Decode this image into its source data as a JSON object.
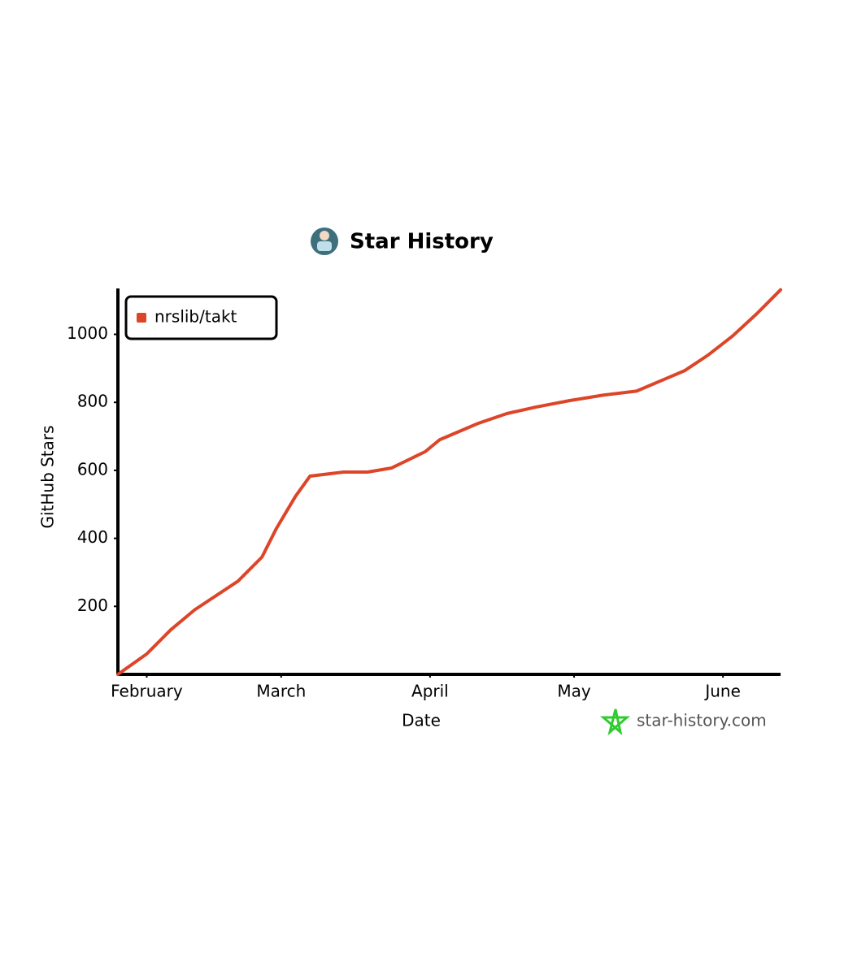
{
  "chart_data": {
    "type": "line",
    "title": "Star History",
    "x_label": "Date",
    "y_label": "GitHub Stars",
    "watermark": "star-history.com",
    "x": [
      -6,
      0,
      5,
      10,
      19,
      24,
      27,
      31,
      34,
      41,
      46,
      51,
      58,
      61,
      69,
      75,
      81,
      88,
      95,
      102,
      108,
      112,
      117,
      122,
      127,
      132
    ],
    "series": [
      {
        "name": "nrslib/takt",
        "color": "#dd4528",
        "values": [
          0,
          60,
          131,
          190,
          274,
          345,
          429,
          524,
          583,
          595,
          595,
          607,
          655,
          690,
          738,
          767,
          786,
          805,
          821,
          833,
          869,
          893,
          940,
          995,
          1060,
          1131
        ]
      }
    ],
    "xlim": [
      -6,
      132
    ],
    "xticks": [
      {
        "value": 0,
        "label": "February"
      },
      {
        "value": 28,
        "label": "March"
      },
      {
        "value": 59,
        "label": "April"
      },
      {
        "value": 89,
        "label": "May"
      },
      {
        "value": 120,
        "label": "June"
      }
    ],
    "ylim": [
      0,
      1135
    ],
    "yticks": [
      200,
      400,
      600,
      800,
      1000
    ],
    "grid": false,
    "legend": "top-left"
  }
}
